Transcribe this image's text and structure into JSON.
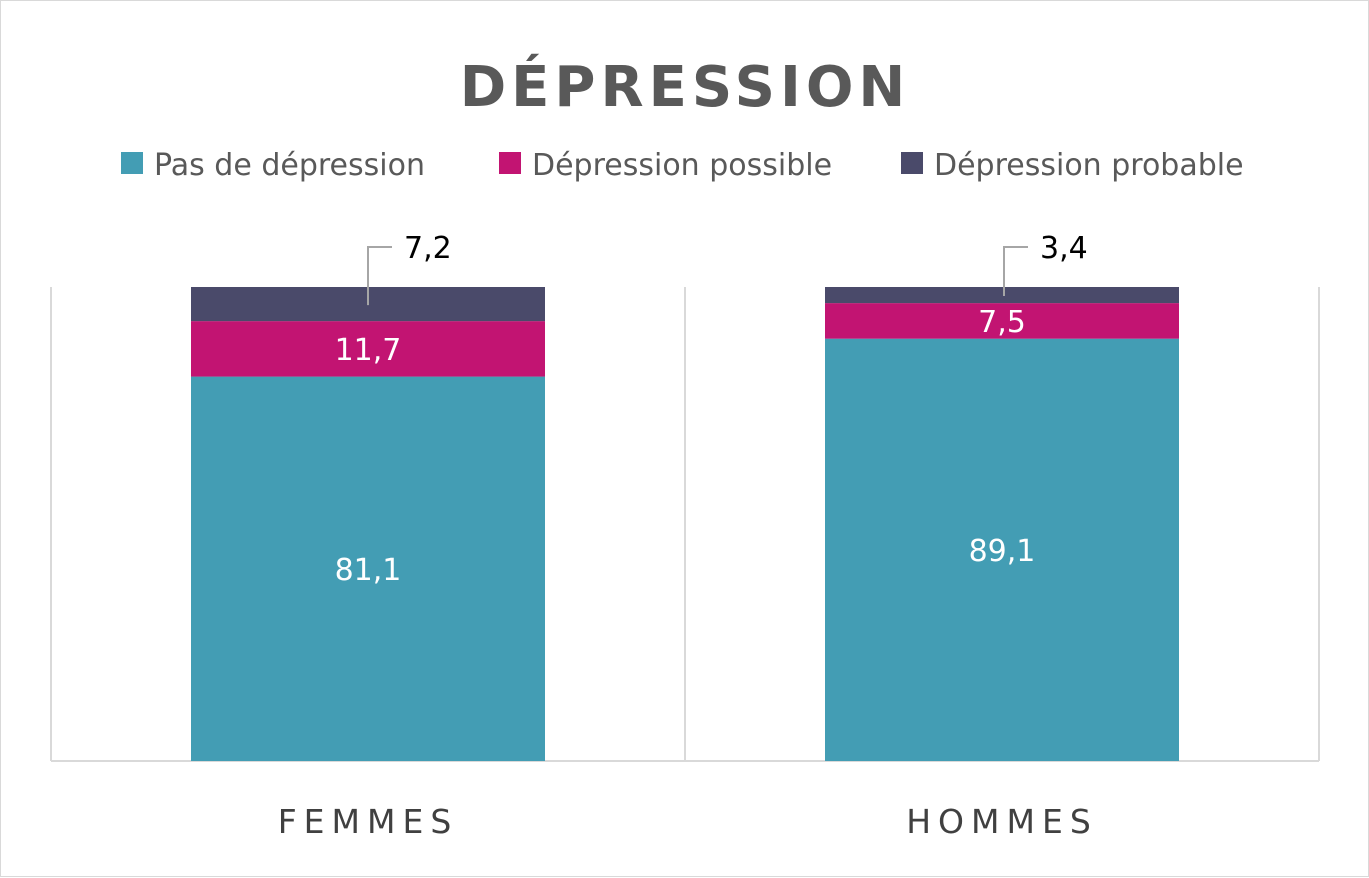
{
  "chart_data": {
    "type": "bar",
    "stacked": true,
    "title": "DÉPRESSION",
    "categories": [
      "FEMMES",
      "HOMMES"
    ],
    "series": [
      {
        "name": "Pas de dépression",
        "values": [
          81.1,
          89.1
        ],
        "labels": [
          "81,1",
          "89,1"
        ],
        "color": "#439DB4"
      },
      {
        "name": "Dépression possible",
        "values": [
          11.7,
          7.5
        ],
        "labels": [
          "11,7",
          "7,5"
        ],
        "color": "#C21472"
      },
      {
        "name": "Dépression probable",
        "values": [
          7.2,
          3.4
        ],
        "labels": [
          "7,2",
          "3,4"
        ],
        "color": "#4A4A6A"
      }
    ],
    "ylim": [
      0,
      100
    ],
    "legend_position": "top",
    "grid": false,
    "colors": {
      "title": "#595959",
      "legend_text": "#595959",
      "category_text": "#404040",
      "segment_label": "#ffffff",
      "callout_label": "#000000",
      "leader_line": "#a6a6a6",
      "axis_line": "#d9d9d9"
    }
  }
}
